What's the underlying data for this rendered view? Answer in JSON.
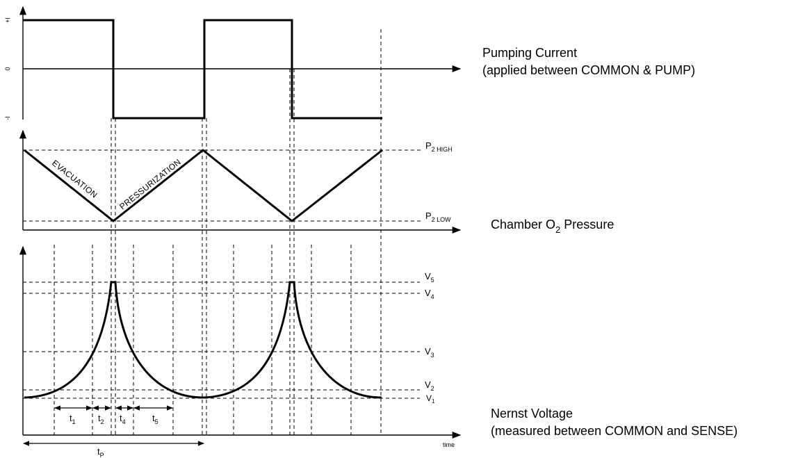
{
  "panels": {
    "current": {
      "title": "Pumping Current",
      "subtitle": "(applied between COMMON & PUMP)",
      "tick_plus": "+I",
      "tick_zero": "0",
      "tick_minus": "-I"
    },
    "pressure": {
      "title_prefix": "Chamber O",
      "title_sub": "2",
      "title_suffix": "Pressure",
      "high_base": "P",
      "high_sub": "2 HIGH",
      "low_base": "P",
      "low_sub": "2 LOW",
      "phase_down": "EVACUATION",
      "phase_up": "PRESSURIZATION"
    },
    "nernst": {
      "title": "Nernst Voltage",
      "subtitle": "(measured between COMMON and SENSE)",
      "levels": [
        {
          "base": "V",
          "sub": "5"
        },
        {
          "base": "V",
          "sub": "4"
        },
        {
          "base": "V",
          "sub": "3"
        },
        {
          "base": "V",
          "sub": "2"
        },
        {
          "base": "V",
          "sub": "1"
        }
      ],
      "intervals": [
        {
          "base": "t",
          "sub": "1"
        },
        {
          "base": "t",
          "sub": "2"
        },
        {
          "base": "t",
          "sub": "4"
        },
        {
          "base": "t",
          "sub": "5"
        }
      ],
      "period": {
        "base": "t",
        "sub": "P"
      },
      "x_axis": "time"
    }
  }
}
